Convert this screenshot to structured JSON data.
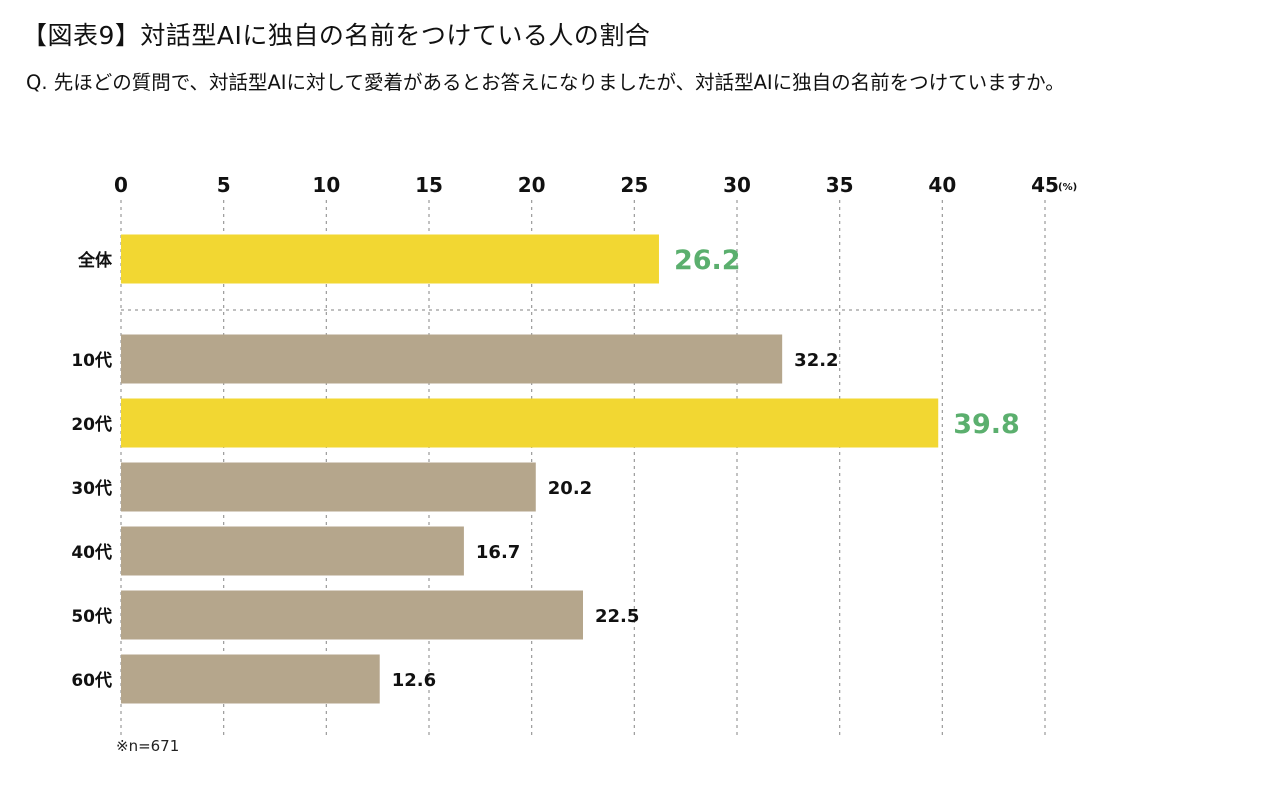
{
  "header": {
    "title": "【図表9】対話型AIに独自の名前をつけている人の割合",
    "question": "Q. 先ほどの質問で、対話型AIに対して愛着があるとお答えになりましたが、対話型AIに独自の名前をつけていますか。"
  },
  "chart_data": {
    "type": "bar",
    "orientation": "horizontal",
    "axis_position": "top",
    "x_ticks": [
      "0",
      "5",
      "10",
      "15",
      "20",
      "25",
      "30",
      "35",
      "40",
      "45"
    ],
    "unit": "(%)",
    "xlim": [
      0,
      45
    ],
    "grid": true,
    "categories": [
      "全体",
      "10代",
      "20代",
      "30代",
      "40代",
      "50代",
      "60代"
    ],
    "values": [
      26.2,
      32.2,
      39.8,
      20.2,
      16.7,
      22.5,
      12.6
    ],
    "value_labels": [
      "26.2",
      "32.2",
      "39.8",
      "20.2",
      "16.7",
      "22.5",
      "12.6"
    ],
    "highlighted": [
      true,
      false,
      true,
      false,
      false,
      false,
      false
    ],
    "colors": {
      "highlight_bar": "#F2D732",
      "normal_bar": "#B5A68C",
      "highlight_label": "#5BAF6E",
      "normal_label": "#111111",
      "grid": "#9A9A9A"
    }
  },
  "footnote": "※n=671"
}
